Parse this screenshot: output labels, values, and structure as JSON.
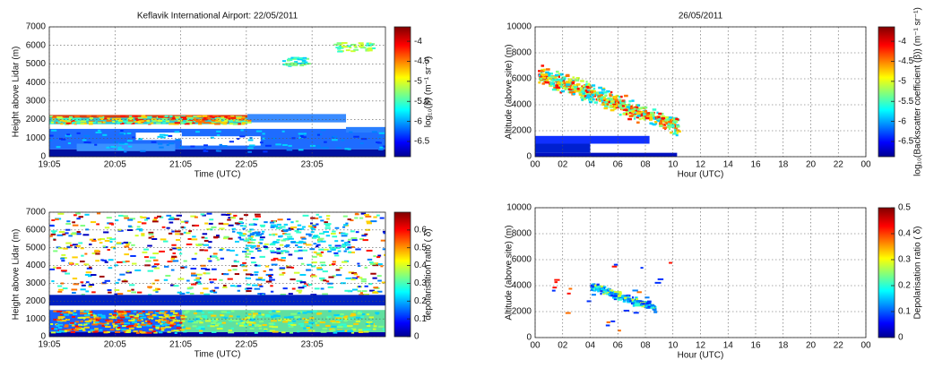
{
  "chart_data": [
    {
      "type": "heatmap",
      "title": "Keflavik International Airport: 22/05/2011",
      "xlabel": "Time (UTC)",
      "ylabel": "Height above Lidar (m)",
      "xlim": [
        19.083,
        24.2
      ],
      "xticks": [
        {
          "value": 19.083,
          "label": "19:05"
        },
        {
          "value": 20.083,
          "label": "20:05"
        },
        {
          "value": 21.083,
          "label": "21:05"
        },
        {
          "value": 22.083,
          "label": "22:05"
        },
        {
          "value": 23.083,
          "label": "23:05"
        }
      ],
      "ylim": [
        0,
        7000
      ],
      "yticks": [
        0,
        1000,
        2000,
        3000,
        4000,
        5000,
        6000,
        7000
      ],
      "grid": true,
      "colorbar": {
        "label": "log₁₀(β) (m⁻¹ sr⁻¹)",
        "lim": [
          -6.88,
          -3.64
        ],
        "ticks": [
          -4,
          -4.5,
          -5,
          -5.5,
          -6,
          -6.5
        ]
      }
    },
    {
      "type": "heatmap",
      "xlabel": "Time (UTC)",
      "ylabel": "Height above Lidar (m)",
      "xlim": [
        19.083,
        24.2
      ],
      "xticks": [
        {
          "value": 19.083,
          "label": "19:05"
        },
        {
          "value": 20.083,
          "label": "20:05"
        },
        {
          "value": 21.083,
          "label": "21:05"
        },
        {
          "value": 22.083,
          "label": "22:05"
        },
        {
          "value": 23.083,
          "label": "23:05"
        }
      ],
      "ylim": [
        0,
        7000
      ],
      "yticks": [
        0,
        1000,
        2000,
        3000,
        4000,
        5000,
        6000,
        7000
      ],
      "grid": true,
      "colorbar": {
        "label": "depolarisation ratio ( δ)",
        "lim": [
          0,
          0.7
        ],
        "ticks": [
          0,
          0.1,
          0.2,
          0.3,
          0.4,
          0.5,
          0.6
        ]
      }
    },
    {
      "type": "heatmap",
      "title": "26/05/2011",
      "xlabel": "Hour (UTC)",
      "ylabel": "Altitude (above site) (m)",
      "xlim": [
        0,
        24
      ],
      "xticks": [
        {
          "value": 0,
          "label": "00"
        },
        {
          "value": 2,
          "label": "02"
        },
        {
          "value": 4,
          "label": "04"
        },
        {
          "value": 6,
          "label": "06"
        },
        {
          "value": 8,
          "label": "08"
        },
        10,
        12,
        14,
        16,
        18,
        20,
        22,
        {
          "value": 24,
          "label": "00"
        }
      ],
      "ylim": [
        0,
        10000
      ],
      "yticks": [
        0,
        2000,
        4000,
        6000,
        8000,
        10000
      ],
      "grid": true,
      "colorbar": {
        "label": "log₁₀(Backscatter coefficient (β)) (m⁻¹ sr⁻¹)",
        "lim": [
          -6.88,
          -3.64
        ],
        "ticks": [
          -4,
          -4.5,
          -5,
          -5.5,
          -6,
          -6.5
        ]
      }
    },
    {
      "type": "heatmap",
      "xlabel": "Hour (UTC)",
      "ylabel": "Altitude (above site) (m)",
      "xlim": [
        0,
        24
      ],
      "xticks": [
        {
          "value": 0,
          "label": "00"
        },
        {
          "value": 2,
          "label": "02"
        },
        {
          "value": 4,
          "label": "04"
        },
        {
          "value": 6,
          "label": "06"
        },
        {
          "value": 8,
          "label": "08"
        },
        10,
        12,
        14,
        16,
        18,
        20,
        22,
        {
          "value": 24,
          "label": "00"
        }
      ],
      "ylim": [
        0,
        10000
      ],
      "yticks": [
        0,
        2000,
        4000,
        6000,
        8000,
        10000
      ],
      "grid": true,
      "colorbar": {
        "label": "Depolarisation ratio ( δ)",
        "lim": [
          0,
          0.5
        ],
        "ticks": [
          0,
          0.1,
          0.2,
          0.3,
          0.4,
          0.5
        ]
      }
    }
  ]
}
